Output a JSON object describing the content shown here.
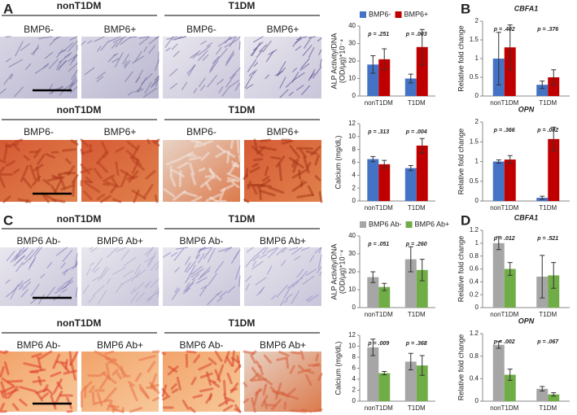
{
  "panel_labels": [
    "A",
    "B",
    "C",
    "D"
  ],
  "image_rows": [
    {
      "groups": [
        "nonT1DM",
        "T1DM"
      ],
      "conditions": [
        "BMP6-",
        "BMP6+",
        "BMP6-",
        "BMP6+"
      ]
    },
    {
      "groups": [
        "nonT1DM",
        "T1DM"
      ],
      "conditions": [
        "BMP6-",
        "BMP6+",
        "BMP6-",
        "BMP6+"
      ]
    },
    {
      "groups": [
        "nonT1DM",
        "T1DM"
      ],
      "conditions": [
        "BMP6 Ab-",
        "BMP6 Ab+",
        "BMP6 Ab-",
        "BMP6 Ab+"
      ]
    },
    {
      "groups": [
        "nonT1DM",
        "T1DM"
      ],
      "conditions": [
        "BMP6 Ab-",
        "BMP6 Ab+",
        "BMP6 Ab-",
        "BMP6 Ab+"
      ]
    }
  ],
  "chart_data": [
    {
      "type": "bar",
      "y_label": [
        "ALP Activity/DNA",
        "(OD/μg)*10⁻⁴"
      ],
      "categories": [
        "nonT1DM",
        "T1DM"
      ],
      "series": [
        {
          "name": "BMP6-",
          "color": "#4472c4",
          "values": [
            18,
            10
          ],
          "errors": [
            5,
            2.5
          ]
        },
        {
          "name": "BMP6+",
          "color": "#c00000",
          "values": [
            21,
            28
          ],
          "errors": [
            6,
            10
          ]
        }
      ],
      "annotations": [
        "p = .251",
        "p = .003"
      ],
      "ylim": [
        0,
        40
      ],
      "yticks": [
        0,
        10,
        20,
        30,
        40
      ],
      "legend": "top"
    },
    {
      "type": "bar",
      "y_label": [
        "Calcium (mg/dL)"
      ],
      "categories": [
        "nonT1DM",
        "T1DM"
      ],
      "series": [
        {
          "color": "#4472c4",
          "values": [
            6.5,
            5.1
          ],
          "errors": [
            0.4,
            0.4
          ]
        },
        {
          "color": "#c00000",
          "values": [
            5.7,
            8.6
          ],
          "errors": [
            0.6,
            1.1
          ]
        }
      ],
      "annotations": [
        "p = .313",
        "p = .004"
      ],
      "ylim": [
        0,
        12
      ],
      "yticks": [
        0,
        2,
        4,
        6,
        8,
        10,
        12
      ]
    },
    {
      "type": "bar",
      "title": "CBFA1",
      "y_label": [
        "Relative fold change"
      ],
      "categories": [
        "nonT1DM",
        "T1DM"
      ],
      "series": [
        {
          "color": "#4472c4",
          "values": [
            1.0,
            0.3
          ],
          "errors": [
            0.7,
            0.1
          ]
        },
        {
          "color": "#c00000",
          "values": [
            1.3,
            0.5
          ],
          "errors": [
            0.6,
            0.2
          ]
        }
      ],
      "annotations": [
        "p = .402",
        "p = .376"
      ],
      "ylim": [
        0,
        2
      ],
      "yticks": [
        0,
        0.5,
        1,
        1.5,
        2
      ]
    },
    {
      "type": "bar",
      "title": "OPN",
      "y_label": [
        "Relative fold change"
      ],
      "categories": [
        "nonT1DM",
        "T1DM"
      ],
      "series": [
        {
          "color": "#4472c4",
          "values": [
            1.0,
            0.08
          ],
          "errors": [
            0.04,
            0.04
          ]
        },
        {
          "color": "#c00000",
          "values": [
            1.05,
            1.57
          ],
          "errors": [
            0.1,
            0.3
          ]
        }
      ],
      "annotations": [
        "p = .366",
        "p = .002"
      ],
      "ylim": [
        0,
        2
      ],
      "yticks": [
        0,
        0.5,
        1,
        1.5,
        2
      ]
    },
    {
      "type": "bar",
      "y_label": [
        "ALP Activity/DNA",
        "(OD/μg)*10⁻⁴"
      ],
      "categories": [
        "nonT1DM",
        "T1DM"
      ],
      "series": [
        {
          "name": "BMP6 Ab-",
          "color": "#a6a6a6",
          "values": [
            17,
            27
          ],
          "errors": [
            3,
            7
          ]
        },
        {
          "name": "BMP6 Ab+",
          "color": "#70ad47",
          "values": [
            11.5,
            21
          ],
          "errors": [
            2,
            6
          ]
        }
      ],
      "annotations": [
        "p = .051",
        "p = .260"
      ],
      "ylim": [
        0,
        40
      ],
      "yticks": [
        0,
        10,
        20,
        30,
        40
      ],
      "legend": "top"
    },
    {
      "type": "bar",
      "y_label": [
        "Calcium (mg/dL)"
      ],
      "categories": [
        "nonT1DM",
        "T1DM"
      ],
      "series": [
        {
          "color": "#a6a6a6",
          "values": [
            9.8,
            7.2
          ],
          "errors": [
            1.5,
            1.5
          ]
        },
        {
          "color": "#70ad47",
          "values": [
            5.1,
            6.5
          ],
          "errors": [
            0.3,
            1.8
          ]
        }
      ],
      "annotations": [
        "p = .009",
        "p = .368"
      ],
      "ylim": [
        0,
        12
      ],
      "yticks": [
        0,
        2,
        4,
        6,
        8,
        10,
        12
      ]
    },
    {
      "type": "bar",
      "title": "CBFA1",
      "y_label": [
        "Relative fold change"
      ],
      "categories": [
        "nonT1DM",
        "T1DM"
      ],
      "series": [
        {
          "color": "#a6a6a6",
          "values": [
            1.0,
            0.48
          ],
          "errors": [
            0.1,
            0.33
          ]
        },
        {
          "color": "#70ad47",
          "values": [
            0.6,
            0.5
          ],
          "errors": [
            0.1,
            0.2
          ]
        }
      ],
      "annotations": [
        "p = .012",
        "p = .521"
      ],
      "ylim": [
        0,
        1.2
      ],
      "yticks": [
        0,
        0.2,
        0.4,
        0.6,
        0.8,
        1,
        1.2
      ]
    },
    {
      "type": "bar",
      "title": "OPN",
      "y_label": [
        "Relative fold change"
      ],
      "categories": [
        "nonT1DM",
        "T1DM"
      ],
      "series": [
        {
          "color": "#a6a6a6",
          "values": [
            1.0,
            0.22
          ],
          "errors": [
            0.06,
            0.04
          ]
        },
        {
          "color": "#70ad47",
          "values": [
            0.47,
            0.12
          ],
          "errors": [
            0.1,
            0.03
          ]
        }
      ],
      "annotations": [
        "p = .002",
        "p = .067"
      ],
      "ylim": [
        0,
        1.2
      ],
      "yticks": [
        0,
        0.4,
        0.8,
        1.2
      ]
    }
  ]
}
